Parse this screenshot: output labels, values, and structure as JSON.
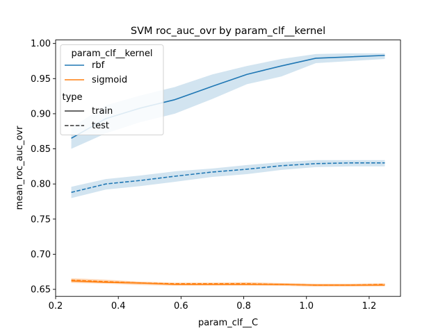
{
  "chart_data": {
    "type": "line",
    "title": "SVM roc_auc_ovr by param_clf__kernel",
    "xlabel": "param_clf__C",
    "ylabel": "mean_roc_auc_ovr",
    "xlim": [
      0.2,
      1.3
    ],
    "ylim": [
      0.64,
      1.005
    ],
    "xticks": [
      0.2,
      0.4,
      0.6,
      0.8,
      1.0,
      1.2
    ],
    "xtick_labels": [
      "0.2",
      "0.4",
      "0.6",
      "0.8",
      "1.0",
      "1.2"
    ],
    "yticks": [
      0.65,
      0.7,
      0.75,
      0.8,
      0.85,
      0.9,
      0.95,
      1.0
    ],
    "ytick_labels": [
      "0.65",
      "0.70",
      "0.75",
      "0.80",
      "0.85",
      "0.90",
      "0.95",
      "1.00"
    ],
    "grid": false,
    "legend": {
      "position": "top-left",
      "hue_title": "param_clf__kernel",
      "hue_entries": [
        {
          "label": "rbf",
          "color": "#1f77b4"
        },
        {
          "label": "sigmoid",
          "color": "#ff7f0e"
        }
      ],
      "style_title": "type",
      "style_entries": [
        {
          "label": "train",
          "dash": "solid"
        },
        {
          "label": "test",
          "dash": "dashed"
        }
      ]
    },
    "series": [
      {
        "kernel": "rbf",
        "type": "train",
        "color": "#1f77b4",
        "dash": "solid",
        "x": [
          0.25,
          0.36,
          0.47,
          0.58,
          0.7,
          0.81,
          0.92,
          1.03,
          1.14,
          1.25
        ],
        "y": [
          0.865,
          0.893,
          0.908,
          0.92,
          0.939,
          0.956,
          0.968,
          0.979,
          0.981,
          0.983
        ],
        "lower": [
          0.85,
          0.872,
          0.888,
          0.9,
          0.921,
          0.942,
          0.953,
          0.972,
          0.975,
          0.978
        ],
        "upper": [
          0.88,
          0.912,
          0.926,
          0.938,
          0.956,
          0.968,
          0.978,
          0.985,
          0.986,
          0.986
        ]
      },
      {
        "kernel": "rbf",
        "type": "test",
        "color": "#1f77b4",
        "dash": "dashed",
        "x": [
          0.25,
          0.36,
          0.47,
          0.58,
          0.7,
          0.81,
          0.92,
          1.03,
          1.14,
          1.25
        ],
        "y": [
          0.788,
          0.8,
          0.805,
          0.811,
          0.817,
          0.821,
          0.826,
          0.829,
          0.83,
          0.83
        ],
        "lower": [
          0.78,
          0.792,
          0.797,
          0.803,
          0.81,
          0.814,
          0.82,
          0.824,
          0.825,
          0.825
        ],
        "upper": [
          0.796,
          0.807,
          0.812,
          0.818,
          0.822,
          0.827,
          0.831,
          0.834,
          0.834,
          0.834
        ]
      },
      {
        "kernel": "sigmoid",
        "type": "train",
        "color": "#ff7f0e",
        "dash": "solid",
        "x": [
          0.25,
          0.36,
          0.47,
          0.58,
          0.7,
          0.81,
          0.92,
          1.03,
          1.14,
          1.25
        ],
        "y": [
          0.662,
          0.66,
          0.659,
          0.657,
          0.657,
          0.657,
          0.657,
          0.656,
          0.656,
          0.656
        ],
        "lower": [
          0.659,
          0.658,
          0.656,
          0.655,
          0.655,
          0.655,
          0.655,
          0.654,
          0.654,
          0.654
        ],
        "upper": [
          0.665,
          0.663,
          0.661,
          0.659,
          0.659,
          0.66,
          0.659,
          0.658,
          0.658,
          0.658
        ]
      },
      {
        "kernel": "sigmoid",
        "type": "test",
        "color": "#ff7f0e",
        "dash": "dashed",
        "x": [
          0.25,
          0.36,
          0.47,
          0.58,
          0.7,
          0.81,
          0.92,
          1.03,
          1.14,
          1.25
        ],
        "y": [
          0.663,
          0.661,
          0.659,
          0.658,
          0.658,
          0.658,
          0.657,
          0.656,
          0.656,
          0.657
        ],
        "lower": [
          0.66,
          0.659,
          0.657,
          0.656,
          0.656,
          0.656,
          0.655,
          0.654,
          0.654,
          0.655
        ],
        "upper": [
          0.666,
          0.664,
          0.661,
          0.66,
          0.66,
          0.66,
          0.659,
          0.658,
          0.658,
          0.659
        ]
      }
    ]
  }
}
